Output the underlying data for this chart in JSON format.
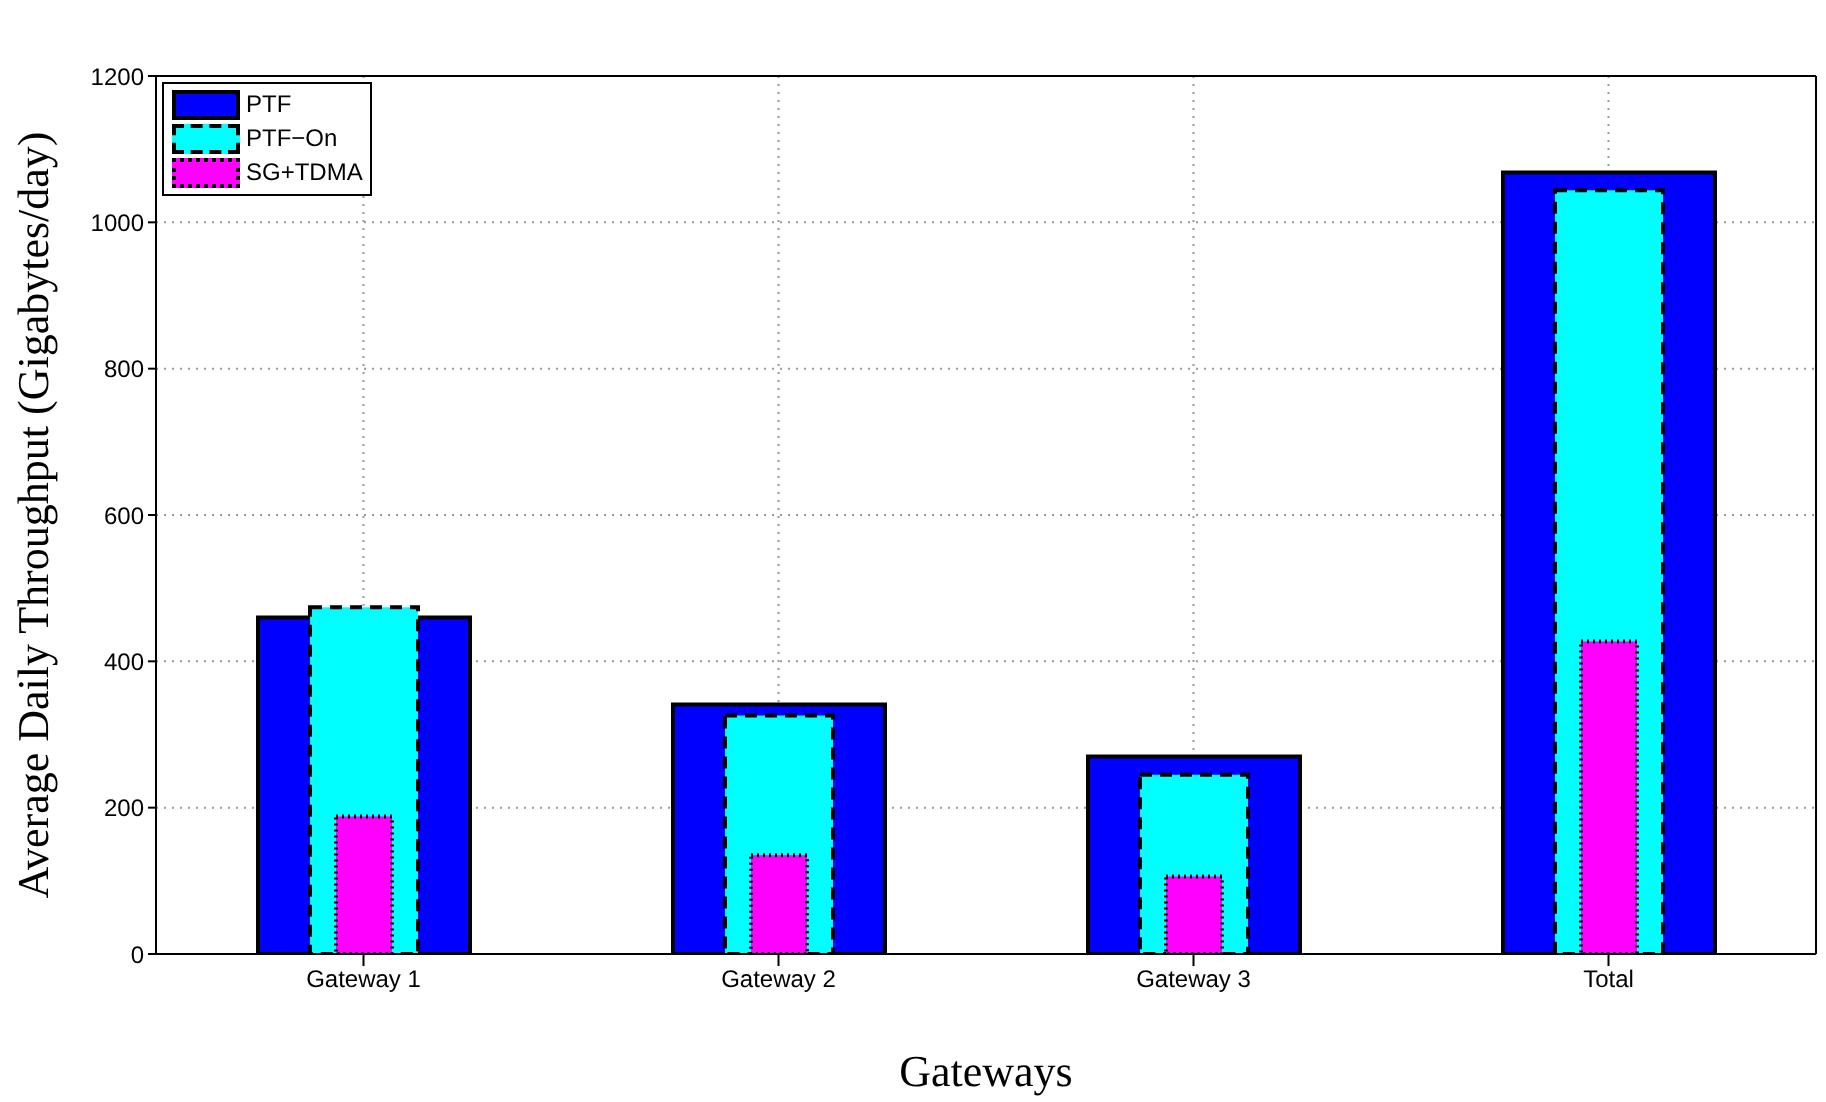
{
  "chart_data": {
    "type": "bar",
    "xlabel": "Gateways",
    "ylabel": "Average Daily Throughput (Gigabytes/day)",
    "categories": [
      "Gateway 1",
      "Gateway 2",
      "Gateway 3",
      "Total"
    ],
    "series": [
      {
        "name": "PTF",
        "color": "#0000ff",
        "line_style": "solid",
        "values": [
          460,
          341,
          270,
          1068
        ]
      },
      {
        "name": "PTF−On",
        "color": "#00ffff",
        "line_style": "dashed",
        "values": [
          474,
          326,
          245,
          1044
        ]
      },
      {
        "name": "SG+TDMA",
        "color": "#ff00ff",
        "line_style": "dotted",
        "values": [
          188,
          135,
          106,
          427
        ]
      }
    ],
    "ylim": [
      0,
      1200
    ],
    "yticks": [
      0,
      200,
      400,
      600,
      800,
      1000,
      1200
    ],
    "grid": true,
    "legend": "top left"
  }
}
